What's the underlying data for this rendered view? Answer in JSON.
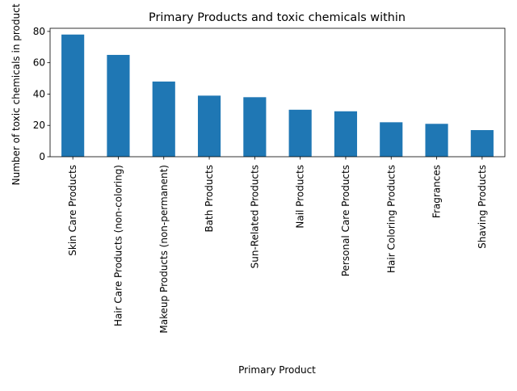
{
  "chart_data": {
    "type": "bar",
    "title": "Primary Products and toxic chemicals within",
    "xlabel": "Primary Product",
    "ylabel": "Number of toxic chemicals in product",
    "categories": [
      "Skin Care Products",
      "Hair Care Products (non-coloring)",
      "Makeup Products (non-permanent)",
      "Bath Products",
      "Sun-Related Products",
      "Nail Products",
      "Personal Care Products",
      "Hair Coloring Products",
      "Fragrances",
      "Shaving Products"
    ],
    "values": [
      78,
      65,
      48,
      39,
      38,
      30,
      29,
      22,
      21,
      17
    ],
    "ylim": [
      0,
      82
    ],
    "yticks": [
      0,
      20,
      40,
      60,
      80
    ],
    "grid": false,
    "legend": "none",
    "bar_color": "#1f77b4"
  }
}
